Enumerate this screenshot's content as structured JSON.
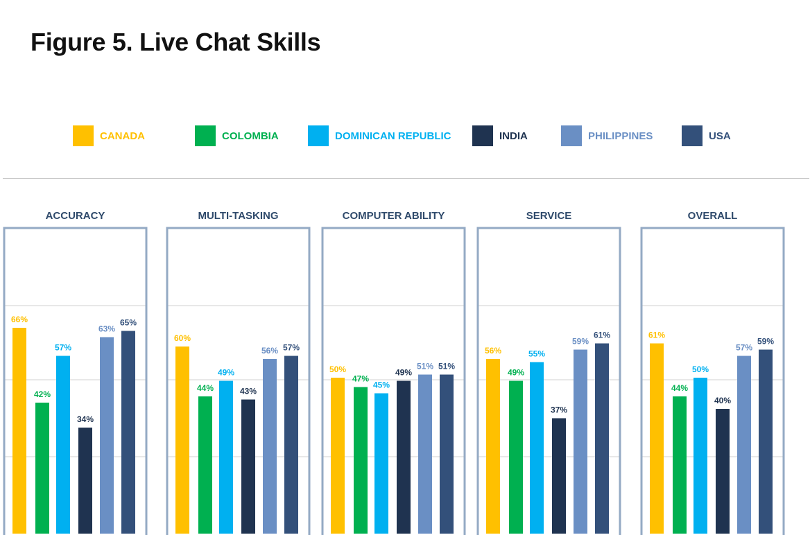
{
  "title": "Figure 5. Live Chat Skills",
  "colors": {
    "panel_border": "#94aac4",
    "gridline": "#d0d0d0",
    "panel_title": "#2f4a6b"
  },
  "legend": [
    {
      "label": "CANADA",
      "color": "#ffc000",
      "text_color": "#ffc000"
    },
    {
      "label": "COLOMBIA",
      "color": "#00b050",
      "text_color": "#00b050"
    },
    {
      "label": "DOMINICAN REPUBLIC",
      "color": "#00b0f0",
      "text_color": "#00b0f0"
    },
    {
      "label": "INDIA",
      "color": "#1f3350",
      "text_color": "#1f3350"
    },
    {
      "label": "PHILIPPINES",
      "color": "#6a8fc4",
      "text_color": "#6a8fc4"
    },
    {
      "label": "USA",
      "color": "#33507a",
      "text_color": "#33507a"
    }
  ],
  "chart_data": [
    {
      "type": "bar",
      "title": "ACCURACY",
      "series": [
        {
          "name": "CANADA",
          "value": 66,
          "label": "66%"
        },
        {
          "name": "COLOMBIA",
          "value": 42,
          "label": "42%"
        },
        {
          "name": "DOMINICAN REPUBLIC",
          "value": 57,
          "label": "57%"
        },
        {
          "name": "INDIA",
          "value": 34,
          "label": "34%"
        },
        {
          "name": "PHILIPPINES",
          "value": 63,
          "label": "63%"
        },
        {
          "name": "USA",
          "value": 65,
          "label": "65%"
        }
      ],
      "ylim": [
        0,
        100
      ],
      "grid": true
    },
    {
      "type": "bar",
      "title": "MULTI-TASKING",
      "series": [
        {
          "name": "CANADA",
          "value": 60,
          "label": "60%"
        },
        {
          "name": "COLOMBIA",
          "value": 44,
          "label": "44%"
        },
        {
          "name": "DOMINICAN REPUBLIC",
          "value": 49,
          "label": "49%"
        },
        {
          "name": "INDIA",
          "value": 43,
          "label": "43%"
        },
        {
          "name": "PHILIPPINES",
          "value": 56,
          "label": "56%"
        },
        {
          "name": "USA",
          "value": 57,
          "label": "57%"
        }
      ],
      "ylim": [
        0,
        100
      ],
      "grid": true
    },
    {
      "type": "bar",
      "title": "COMPUTER ABILITY",
      "series": [
        {
          "name": "CANADA",
          "value": 50,
          "label": "50%"
        },
        {
          "name": "COLOMBIA",
          "value": 47,
          "label": "47%"
        },
        {
          "name": "DOMINICAN REPUBLIC",
          "value": 45,
          "label": "45%"
        },
        {
          "name": "INDIA",
          "value": 49,
          "label": "49%"
        },
        {
          "name": "PHILIPPINES",
          "value": 51,
          "label": "51%"
        },
        {
          "name": "USA",
          "value": 51,
          "label": "51%"
        }
      ],
      "ylim": [
        0,
        100
      ],
      "grid": true
    },
    {
      "type": "bar",
      "title": "SERVICE",
      "series": [
        {
          "name": "CANADA",
          "value": 56,
          "label": "56%"
        },
        {
          "name": "COLOMBIA",
          "value": 49,
          "label": "49%"
        },
        {
          "name": "DOMINICAN REPUBLIC",
          "value": 55,
          "label": "55%"
        },
        {
          "name": "INDIA",
          "value": 37,
          "label": "37%"
        },
        {
          "name": "PHILIPPINES",
          "value": 59,
          "label": "59%"
        },
        {
          "name": "USA",
          "value": 61,
          "label": "61%"
        }
      ],
      "ylim": [
        0,
        100
      ],
      "grid": true
    },
    {
      "type": "bar",
      "title": "OVERALL",
      "series": [
        {
          "name": "CANADA",
          "value": 61,
          "label": "61%"
        },
        {
          "name": "COLOMBIA",
          "value": 44,
          "label": "44%"
        },
        {
          "name": "DOMINICAN REPUBLIC",
          "value": 50,
          "label": "50%"
        },
        {
          "name": "INDIA",
          "value": 40,
          "label": "40%"
        },
        {
          "name": "PHILIPPINES",
          "value": 57,
          "label": "57%"
        },
        {
          "name": "USA",
          "value": 59,
          "label": "59%"
        }
      ],
      "ylim": [
        0,
        100
      ],
      "grid": true
    }
  ]
}
